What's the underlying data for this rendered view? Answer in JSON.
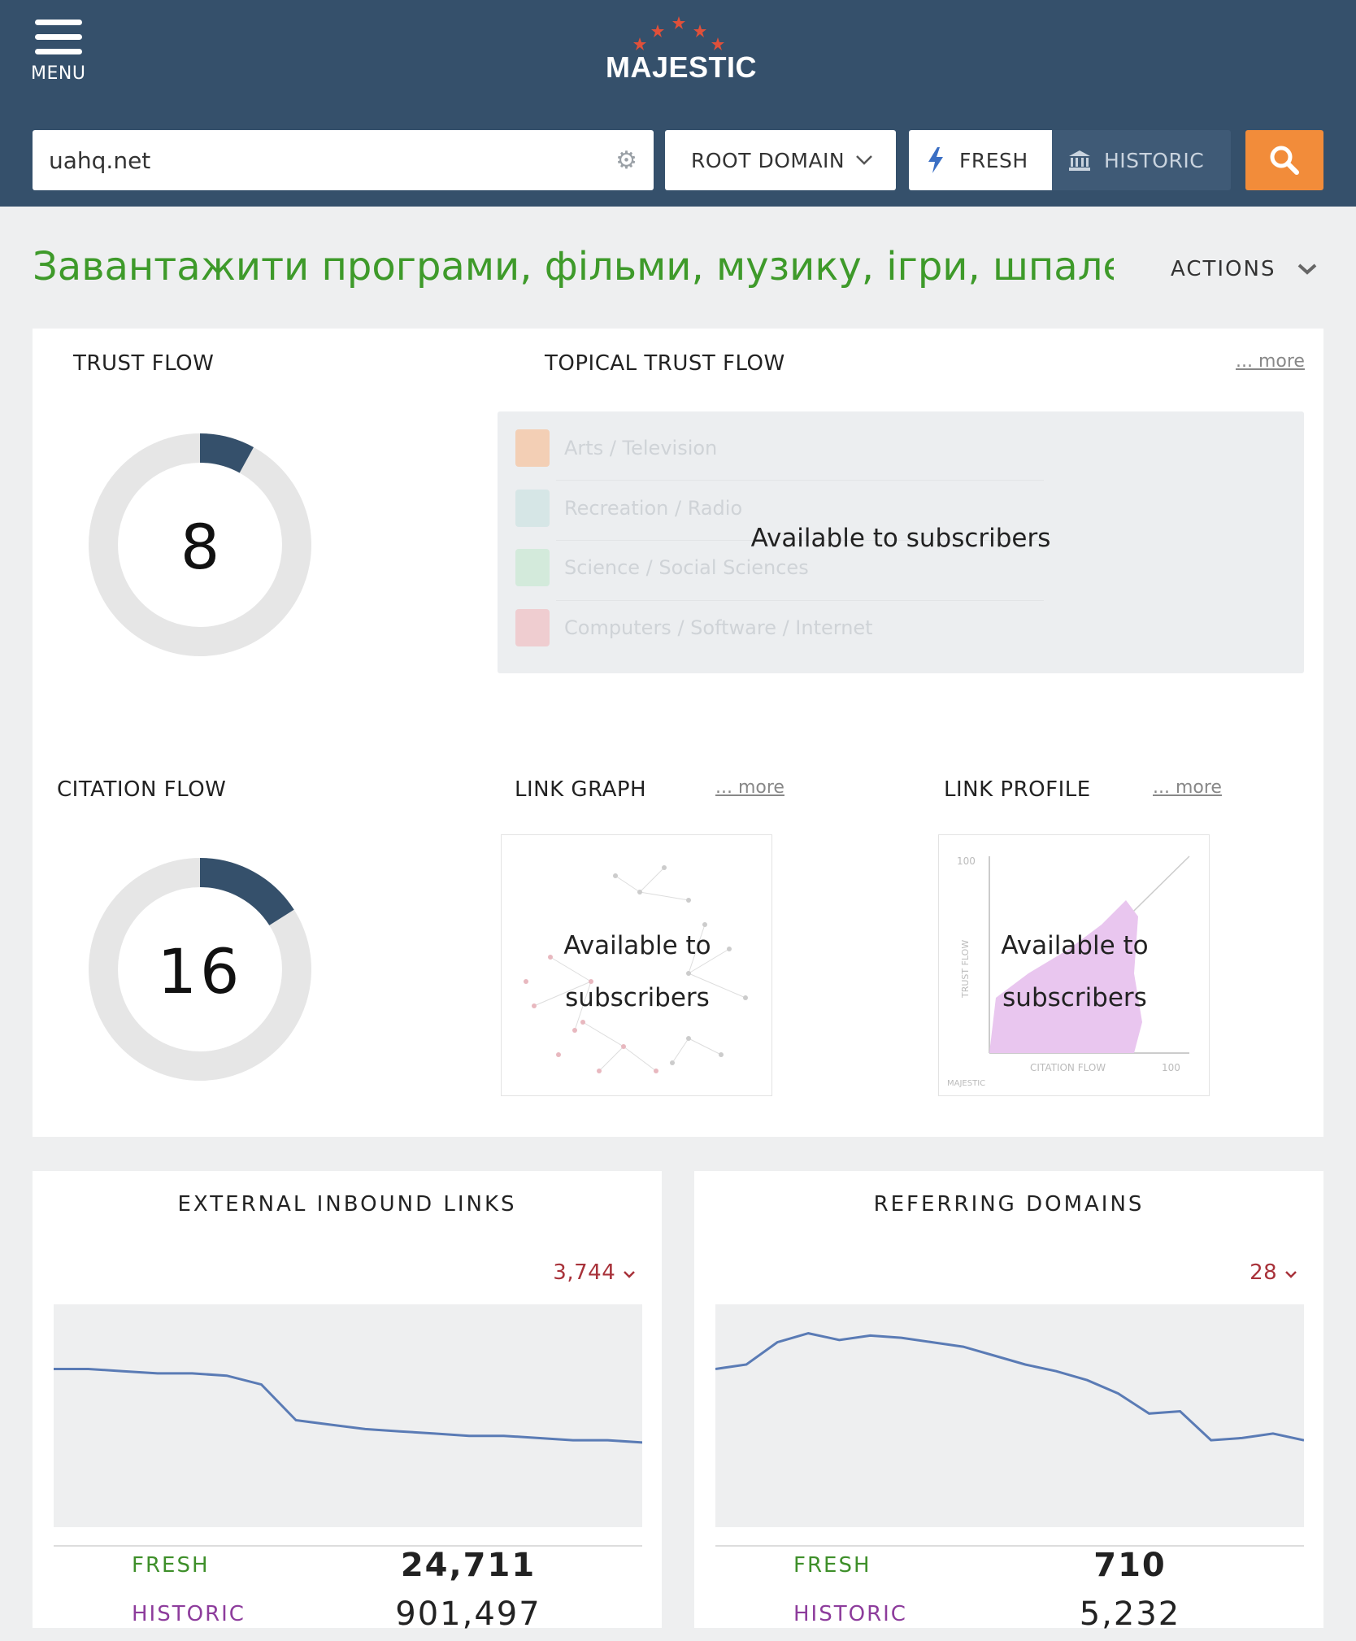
{
  "header": {
    "menu_label": "MENU",
    "logo_text": "MAJESTIC",
    "search_value": "uahq.net",
    "scope_label": "ROOT DOMAIN",
    "fresh_label": "FRESH",
    "historic_label": "HISTORIC",
    "colors": {
      "bar": "#35506b",
      "search_button": "#f28c3a",
      "accent_blue": "#3b6fc4"
    },
    "icons": [
      "menu-icon",
      "gear-icon",
      "chevron-down-icon",
      "lightning-icon",
      "bank-icon",
      "search-icon"
    ]
  },
  "page": {
    "title": "Завантажити програми, фільми, музику, ігри, шпале",
    "title_ellipsis": "…",
    "actions_label": "ACTIONS",
    "title_color": "#3e9a2a"
  },
  "trust_flow": {
    "label": "TRUST FLOW",
    "value": 8,
    "max": 100,
    "color": "#35506b"
  },
  "citation_flow": {
    "label": "CITATION FLOW",
    "value": 16,
    "max": 100,
    "color": "#35506b"
  },
  "topical_trust_flow": {
    "label": "TOPICAL TRUST FLOW",
    "more": "... more",
    "overlay": "Available to subscribers",
    "topics": [
      {
        "label": "Arts / Television",
        "color": "#f3c6a6"
      },
      {
        "label": "Recreation / Radio",
        "color": "#cfe3e3"
      },
      {
        "label": "Science / Social Sciences",
        "color": "#cbe8d3"
      },
      {
        "label": "Computers / Software / Internet",
        "color": "#eec2c5"
      }
    ]
  },
  "link_graph": {
    "label": "LINK GRAPH",
    "more": "... more",
    "overlay_line1": "Available to",
    "overlay_line2": "subscribers"
  },
  "link_profile": {
    "label": "LINK PROFILE",
    "more": "... more",
    "overlay_line1": "Available to",
    "overlay_line2": "subscribers",
    "y_axis_label": "TRUST FLOW",
    "x_axis_label": "CITATION FLOW",
    "y_max_label": "100",
    "x_max_label": "100",
    "watermark": "MAJESTIC"
  },
  "external_inbound_links": {
    "title": "EXTERNAL INBOUND LINKS",
    "delta": "3,744",
    "fresh_label": "FRESH",
    "fresh_value": "24,711",
    "historic_label": "HISTORIC",
    "historic_value": "901,497",
    "trend": [
      0.71,
      0.71,
      0.7,
      0.69,
      0.69,
      0.68,
      0.64,
      0.48,
      0.46,
      0.44,
      0.43,
      0.42,
      0.41,
      0.41,
      0.4,
      0.39,
      0.39,
      0.38
    ]
  },
  "referring_domains": {
    "title": "REFERRING DOMAINS",
    "delta": "28",
    "fresh_label": "FRESH",
    "fresh_value": "710",
    "historic_label": "HISTORIC",
    "historic_value": "5,232",
    "trend": [
      0.71,
      0.73,
      0.83,
      0.87,
      0.84,
      0.86,
      0.85,
      0.83,
      0.81,
      0.77,
      0.73,
      0.7,
      0.66,
      0.6,
      0.51,
      0.52,
      0.39,
      0.4,
      0.42,
      0.39
    ]
  }
}
